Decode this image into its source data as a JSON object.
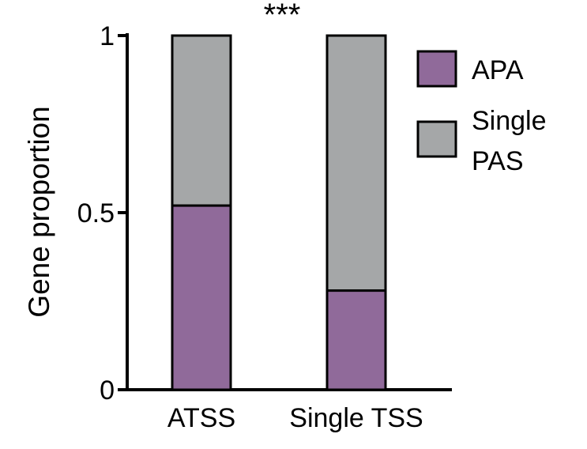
{
  "chart_data": {
    "type": "bar",
    "stacked": true,
    "normalized": true,
    "categories": [
      "ATSS",
      "Single TSS"
    ],
    "series": [
      {
        "name": "APA",
        "values": [
          0.52,
          0.28
        ],
        "color": "#906a9a"
      },
      {
        "name": "Single PAS",
        "values": [
          0.48,
          0.72
        ],
        "color": "#a5a7a8"
      }
    ],
    "legend_lines": [
      [
        "APA"
      ],
      [
        "Single",
        "PAS"
      ]
    ],
    "ylabel": "Gene proportion",
    "xlabel": "",
    "title": "",
    "ylim": [
      0,
      1
    ],
    "yticks": [
      0,
      0.5,
      1
    ],
    "ytick_labels": [
      "0",
      "0.5",
      "1"
    ],
    "grid": false,
    "legend_position": "right",
    "annotation": "***"
  }
}
